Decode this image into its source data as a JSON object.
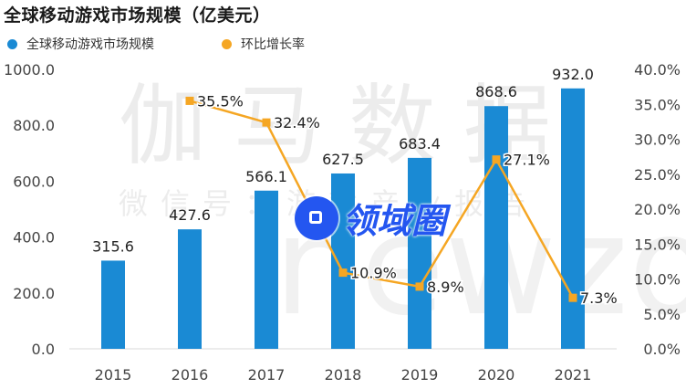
{
  "title": "全球移动游戏市场规模（亿美元）",
  "legend": {
    "bar_label": "全球移动游戏市场规模",
    "line_label": "环比增长率"
  },
  "colors": {
    "bar": "#1a8ad4",
    "line": "#f5a623",
    "stamp": "#2456f0"
  },
  "watermark": {
    "big": "伽马数据",
    "small": "微信号：游戏产业报告",
    "latin": "newzoo"
  },
  "stamp": {
    "text": "领域圈",
    "icon": "domain-circle-logo-icon"
  },
  "chart_data": {
    "type": "bar",
    "title": "全球移动游戏市场规模（亿美元）",
    "categories": [
      "2015",
      "2016",
      "2017",
      "2018",
      "2019",
      "2020",
      "2021"
    ],
    "series": [
      {
        "name": "全球移动游戏市场规模",
        "type": "bar",
        "axis": "left",
        "values": [
          315.6,
          427.6,
          566.1,
          627.5,
          683.4,
          868.6,
          932.0
        ],
        "labels": [
          "315.6",
          "427.6",
          "566.1",
          "627.5",
          "683.4",
          "868.6",
          "932.0"
        ]
      },
      {
        "name": "环比增长率",
        "type": "line",
        "axis": "right",
        "values": [
          null,
          35.5,
          32.4,
          10.9,
          8.9,
          27.1,
          7.3
        ],
        "labels": [
          "",
          "35.5%",
          "32.4%",
          "10.9%",
          "8.9%",
          "27.1%",
          "7.3%"
        ]
      }
    ],
    "left_axis": {
      "min": 0,
      "max": 1000,
      "ticks": [
        "0.0",
        "200.0",
        "400.0",
        "600.0",
        "800.0",
        "1000.0"
      ]
    },
    "right_axis": {
      "min": 0,
      "max": 40,
      "ticks": [
        "0.0%",
        "5.0%",
        "10.0%",
        "15.0%",
        "20.0%",
        "25.0%",
        "30.0%",
        "35.0%",
        "40.0%"
      ]
    },
    "grid": false,
    "legend_position": "top-left"
  }
}
